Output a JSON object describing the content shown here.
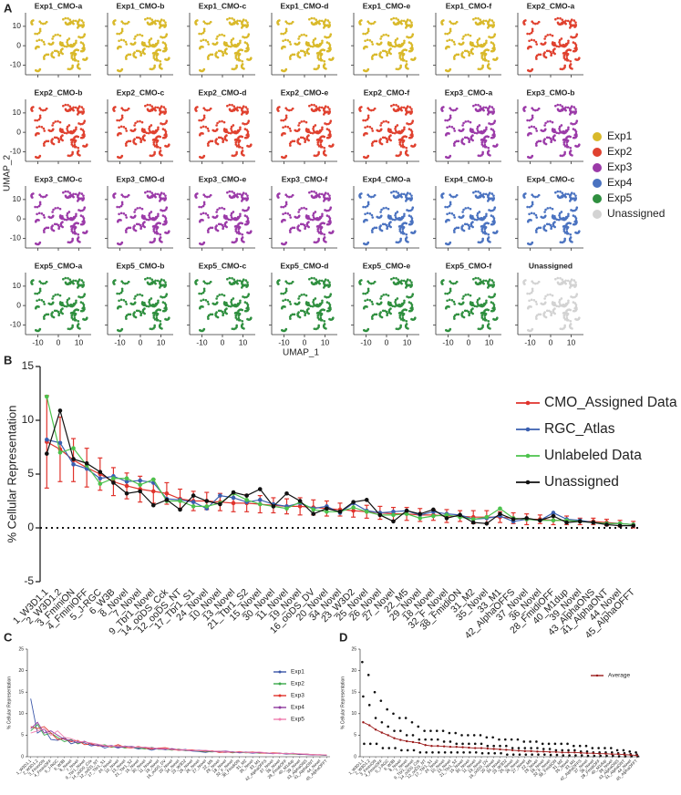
{
  "panel_labels": [
    "A",
    "B",
    "C",
    "D"
  ],
  "chart_data": [
    {
      "type": "umap_facets",
      "x_label": "UMAP_1",
      "y_label": "UMAP_2",
      "xlim": [
        -16,
        16
      ],
      "ylim": [
        -15,
        17
      ],
      "xticks": [
        -10,
        0,
        10
      ],
      "yticks": [
        -10,
        0,
        10
      ],
      "groups": [
        {
          "name": "Exp1",
          "color": "#d9b92a"
        },
        {
          "name": "Exp2",
          "color": "#e0412f"
        },
        {
          "name": "Exp3",
          "color": "#9b3aa8"
        },
        {
          "name": "Exp4",
          "color": "#4a72c0"
        },
        {
          "name": "Exp5",
          "color": "#2f8f3f"
        },
        {
          "name": "Unassigned",
          "color": "#d3d3d3"
        }
      ],
      "facets": [
        {
          "title": "Exp1_CMO-a",
          "group": "Exp1"
        },
        {
          "title": "Exp1_CMO-b",
          "group": "Exp1"
        },
        {
          "title": "Exp1_CMO-c",
          "group": "Exp1"
        },
        {
          "title": "Exp1_CMO-d",
          "group": "Exp1"
        },
        {
          "title": "Exp1_CMO-e",
          "group": "Exp1"
        },
        {
          "title": "Exp1_CMO-f",
          "group": "Exp1"
        },
        {
          "title": "Exp2_CMO-a",
          "group": "Exp2"
        },
        {
          "title": "Exp2_CMO-b",
          "group": "Exp2"
        },
        {
          "title": "Exp2_CMO-c",
          "group": "Exp2"
        },
        {
          "title": "Exp2_CMO-d",
          "group": "Exp2"
        },
        {
          "title": "Exp2_CMO-e",
          "group": "Exp2"
        },
        {
          "title": "Exp2_CMO-f",
          "group": "Exp2"
        },
        {
          "title": "Exp3_CMO-a",
          "group": "Exp3"
        },
        {
          "title": "Exp3_CMO-b",
          "group": "Exp3"
        },
        {
          "title": "Exp3_CMO-c",
          "group": "Exp3"
        },
        {
          "title": "Exp3_CMO-d",
          "group": "Exp3"
        },
        {
          "title": "Exp3_CMO-e",
          "group": "Exp3"
        },
        {
          "title": "Exp3_CMO-f",
          "group": "Exp3"
        },
        {
          "title": "Exp4_CMO-a",
          "group": "Exp4"
        },
        {
          "title": "Exp4_CMO-b",
          "group": "Exp4"
        },
        {
          "title": "Exp4_CMO-c",
          "group": "Exp4"
        },
        {
          "title": "Exp5_CMO-a",
          "group": "Exp5"
        },
        {
          "title": "Exp5_CMO-b",
          "group": "Exp5"
        },
        {
          "title": "Exp5_CMO-c",
          "group": "Exp5"
        },
        {
          "title": "Exp5_CMO-d",
          "group": "Exp5"
        },
        {
          "title": "Exp5_CMO-e",
          "group": "Exp5"
        },
        {
          "title": "Exp5_CMO-f",
          "group": "Exp5"
        },
        {
          "title": "Unassigned",
          "group": "Unassigned"
        }
      ]
    },
    {
      "type": "line",
      "y_label": "% Cellular Representation",
      "ylim": [
        -5,
        15
      ],
      "yticks": [
        -5,
        0,
        5,
        10,
        15
      ],
      "reference_line": 0,
      "categories": [
        "1_W3D1.1",
        "2_W3D1.2",
        "3_FminiON",
        "4_FminiOFF",
        "5_J-RGC",
        "6_W3B",
        "8_Novel",
        "7_Novel",
        "9_Tbr1_Novel",
        "14_ooDS_Cck",
        "12_ooDS_NT",
        "17_Tbr1_S1",
        "24_Novel",
        "10_Novel",
        "13_Novel",
        "21_Tbr1_S2",
        "15_Novel",
        "30_Novel",
        "11_Novel",
        "19_Novel",
        "16_ooDS_DV",
        "20_Novel",
        "34_Novel",
        "23_W3D2",
        "25_Novel",
        "26_Novel",
        "27_Novel",
        "22_M5",
        "29_Novel",
        "18_Novel",
        "32_F_Novel",
        "38_FmidiON",
        "31_M2",
        "35_Novel",
        "33_M1",
        "42_AlphaOFFS",
        "37_Novel",
        "36_Novel",
        "28_FmidiOFF",
        "40_M1dup",
        "39_Novel",
        "43_AlphaONS",
        "41_AlphaONT",
        "44_Novel",
        "45_AlphaOFFT"
      ],
      "series": [
        {
          "name": "CMO_Assigned Data",
          "color": "#e0332c",
          "values": [
            8.0,
            7.3,
            6.3,
            5.6,
            5.0,
            4.3,
            3.9,
            3.6,
            3.4,
            3.2,
            2.7,
            2.5,
            2.5,
            2.4,
            2.3,
            2.3,
            2.2,
            2.1,
            2.0,
            2.0,
            1.9,
            1.8,
            1.7,
            1.6,
            1.5,
            1.4,
            1.3,
            1.3,
            1.2,
            1.2,
            1.1,
            1.1,
            1.0,
            1.0,
            1.0,
            0.9,
            0.8,
            0.8,
            0.7,
            0.7,
            0.6,
            0.6,
            0.5,
            0.4,
            0.3
          ],
          "errors": [
            4.3,
            3.0,
            2.0,
            1.8,
            1.5,
            1.3,
            1.2,
            1.2,
            1.1,
            1.0,
            0.9,
            0.9,
            0.8,
            0.8,
            0.8,
            0.8,
            0.8,
            0.7,
            0.7,
            0.8,
            0.7,
            0.7,
            0.6,
            0.6,
            0.6,
            0.6,
            0.6,
            0.6,
            0.6,
            0.5,
            0.6,
            0.5,
            0.6,
            0.6,
            0.5,
            0.5,
            0.5,
            0.4,
            0.4,
            0.4,
            0.3,
            0.3,
            0.3,
            0.3,
            0.3
          ]
        },
        {
          "name": "RGC_Atlas",
          "color": "#3a5fb0",
          "values": [
            8.2,
            7.9,
            5.9,
            5.5,
            4.6,
            4.8,
            4.3,
            4.4,
            4.2,
            2.7,
            2.6,
            2.4,
            1.8,
            3.0,
            2.8,
            2.4,
            2.6,
            2.2,
            2.0,
            2.3,
            1.8,
            2.0,
            1.4,
            2.3,
            1.6,
            1.4,
            1.5,
            1.6,
            1.2,
            1.5,
            1.3,
            1.2,
            0.8,
            0.9,
            1.1,
            0.6,
            0.8,
            0.7,
            1.4,
            0.8,
            0.7,
            0.5,
            0.4,
            0.4,
            0.3
          ]
        },
        {
          "name": "Unlabeled Data",
          "color": "#4cc24c",
          "values": [
            12.2,
            7.0,
            7.4,
            5.8,
            4.1,
            4.6,
            4.6,
            4.0,
            4.5,
            2.5,
            2.5,
            2.0,
            2.0,
            2.3,
            3.2,
            2.6,
            2.2,
            2.0,
            1.8,
            2.4,
            1.7,
            1.5,
            1.5,
            1.9,
            1.5,
            1.2,
            1.2,
            1.3,
            0.9,
            1.1,
            1.2,
            1.0,
            0.8,
            1.0,
            1.8,
            0.9,
            0.8,
            0.7,
            0.7,
            0.7,
            0.6,
            0.5,
            0.4,
            0.4,
            0.3
          ]
        },
        {
          "name": "Unassigned",
          "color": "#111111",
          "values": [
            6.9,
            10.9,
            6.4,
            6.0,
            5.2,
            4.2,
            3.2,
            3.4,
            2.1,
            2.6,
            1.7,
            3.0,
            2.5,
            2.2,
            3.3,
            3.0,
            3.6,
            2.0,
            3.2,
            2.5,
            1.3,
            1.8,
            1.5,
            2.4,
            2.6,
            1.2,
            0.6,
            1.6,
            1.3,
            1.7,
            0.9,
            1.2,
            0.5,
            0.4,
            1.3,
            0.8,
            0.9,
            0.7,
            1.1,
            0.5,
            0.6,
            0.5,
            0.3,
            0.2,
            0.2
          ]
        }
      ]
    },
    {
      "type": "line",
      "y_label": "% Cellular Representation",
      "ylim": [
        0,
        25
      ],
      "yticks": [
        0,
        5,
        10,
        15,
        20,
        25
      ],
      "categories": [
        "1_W3D1.1",
        "2_W3D1.2",
        "3_FminiON",
        "4_FminiOFF",
        "5_J-RGC",
        "6_W3B",
        "8_Novel",
        "7_Novel",
        "9_Tbr1_Novel",
        "14_ooDS_Cck",
        "12_ooDS_NT",
        "17_Tbr1_S1",
        "24_Novel",
        "10_Novel",
        "13_Novel",
        "21_Tbr1_S2",
        "15_Novel",
        "30_Novel",
        "11_Novel",
        "19_Novel",
        "16_ooDS_DV",
        "20_Novel",
        "34_Novel",
        "23_W3D2",
        "25_Novel",
        "26_Novel",
        "27_Novel",
        "22_M5",
        "29_Novel",
        "18_Novel",
        "32_F_Novel",
        "38_FmidiON",
        "31_M2",
        "35_Novel",
        "33_M1",
        "42_AlphaOFFS",
        "37_Novel",
        "36_Novel",
        "28_FmidiOFF",
        "40_M1dup",
        "39_Novel",
        "43_AlphaONS",
        "41_AlphaONT",
        "44_Novel",
        "45_AlphaOFFT"
      ],
      "series": [
        {
          "name": "Exp1",
          "color": "#3a56a8",
          "values": [
            13.5,
            5.5,
            6.5,
            4.0,
            3.8,
            4.5,
            3.0,
            3.5,
            3.2,
            2.5,
            2.8,
            2.0,
            2.5,
            2.0,
            2.5,
            2.2,
            1.8,
            2.0,
            1.5,
            2.0,
            1.6,
            1.8,
            1.5,
            1.7,
            1.3,
            1.2,
            1.0,
            1.3,
            1.1,
            1.0,
            1.2,
            0.9,
            1.0,
            0.8,
            1.0,
            0.8,
            0.7,
            0.8,
            0.6,
            0.7,
            0.5,
            0.6,
            0.5,
            0.4,
            0.3
          ]
        },
        {
          "name": "Exp2",
          "color": "#3aa84a",
          "values": [
            6.0,
            7.5,
            5.0,
            5.5,
            4.5,
            3.5,
            4.0,
            3.0,
            3.5,
            3.0,
            2.5,
            2.8,
            2.2,
            2.5,
            2.0,
            2.3,
            2.0,
            1.8,
            2.2,
            1.7,
            1.8,
            1.5,
            1.8,
            1.4,
            1.5,
            1.3,
            1.2,
            1.1,
            1.3,
            1.2,
            0.9,
            1.1,
            0.9,
            1.0,
            0.8,
            0.9,
            0.8,
            0.7,
            0.8,
            0.6,
            0.6,
            0.5,
            0.5,
            0.4,
            0.3
          ]
        },
        {
          "name": "Exp3",
          "color": "#e0332c",
          "values": [
            7.0,
            6.5,
            7.0,
            5.5,
            4.0,
            4.2,
            3.5,
            3.8,
            2.8,
            3.0,
            2.5,
            2.5,
            2.3,
            2.8,
            2.2,
            2.0,
            2.4,
            2.0,
            1.8,
            2.0,
            2.1,
            1.7,
            1.5,
            1.6,
            1.6,
            1.4,
            1.3,
            1.4,
            1.0,
            1.1,
            1.0,
            1.2,
            1.0,
            1.1,
            0.9,
            0.8,
            0.9,
            0.8,
            0.7,
            0.7,
            0.6,
            0.6,
            0.5,
            0.4,
            0.4
          ]
        },
        {
          "name": "Exp4",
          "color": "#8e3a9e",
          "values": [
            6.5,
            8.0,
            5.5,
            6.0,
            5.0,
            4.0,
            3.8,
            3.2,
            3.6,
            2.8,
            2.6,
            2.4,
            2.6,
            2.2,
            2.3,
            2.4,
            2.1,
            2.2,
            2.0,
            1.8,
            1.7,
            1.9,
            1.6,
            1.5,
            1.4,
            1.5,
            1.4,
            1.2,
            1.2,
            1.3,
            1.1,
            1.0,
            1.1,
            0.9,
            1.0,
            0.9,
            0.7,
            0.8,
            0.7,
            0.8,
            0.6,
            0.5,
            0.4,
            0.5,
            0.3
          ]
        },
        {
          "name": "Exp5",
          "color": "#f07fb0",
          "values": [
            5.5,
            6.0,
            6.5,
            5.0,
            6.0,
            4.5,
            4.2,
            3.6,
            3.4,
            3.2,
            2.9,
            2.6,
            2.4,
            2.5,
            2.4,
            2.1,
            2.3,
            2.1,
            2.1,
            1.9,
            1.9,
            1.6,
            1.7,
            1.6,
            1.5,
            1.4,
            1.5,
            1.3,
            1.3,
            1.1,
            1.1,
            1.1,
            1.0,
            1.0,
            1.1,
            0.9,
            0.8,
            0.7,
            0.8,
            0.7,
            0.7,
            0.6,
            0.5,
            0.5,
            0.4
          ]
        }
      ]
    },
    {
      "type": "line_points",
      "y_label": "% Cellular Representation",
      "ylim": [
        0,
        25
      ],
      "yticks": [
        0,
        5,
        10,
        15,
        20,
        25
      ],
      "categories": [
        "1_W3D1.1",
        "2_W3D1.2",
        "3_FminiON",
        "4_FminiOFF",
        "5_J-RGC",
        "6_W3B",
        "8_Novel",
        "7_Novel",
        "9_Tbr1_Novel",
        "14_ooDS_Cck",
        "12_ooDS_NT",
        "17_Tbr1_S1",
        "24_Novel",
        "10_Novel",
        "13_Novel",
        "21_Tbr1_S2",
        "15_Novel",
        "30_Novel",
        "11_Novel",
        "19_Novel",
        "16_ooDS_DV",
        "20_Novel",
        "34_Novel",
        "23_W3D2",
        "25_Novel",
        "26_Novel",
        "27_Novel",
        "22_M5",
        "29_Novel",
        "18_Novel",
        "32_F_Novel",
        "38_FmidiON",
        "31_M2",
        "35_Novel",
        "33_M1",
        "42_AlphaOFFS",
        "37_Novel",
        "36_Novel",
        "28_FmidiOFF",
        "40_M1dup",
        "39_Novel",
        "43_AlphaONS",
        "41_AlphaONT",
        "44_Novel",
        "45_AlphaOFFT"
      ],
      "points": [
        [
          22,
          14,
          3
        ],
        [
          19,
          12,
          3
        ],
        [
          15,
          9,
          3
        ],
        [
          13,
          8,
          2
        ],
        [
          11,
          7,
          2
        ],
        [
          10,
          6,
          2
        ],
        [
          9,
          6,
          1.5
        ],
        [
          9,
          5,
          1.5
        ],
        [
          8,
          5,
          1.5
        ],
        [
          7,
          4,
          1
        ],
        [
          6,
          4,
          1
        ],
        [
          6,
          4,
          1
        ],
        [
          6,
          4,
          1
        ],
        [
          6,
          3.5,
          1
        ],
        [
          5.5,
          3.5,
          1
        ],
        [
          5.5,
          3,
          1
        ],
        [
          5,
          3,
          1
        ],
        [
          5,
          3,
          1
        ],
        [
          5,
          3,
          1
        ],
        [
          5,
          3,
          0.8
        ],
        [
          4.5,
          2.5,
          0.8
        ],
        [
          4.5,
          2.5,
          0.8
        ],
        [
          4,
          2.5,
          0.8
        ],
        [
          4,
          2.5,
          0.5
        ],
        [
          4,
          2,
          0.5
        ],
        [
          4,
          2,
          0.5
        ],
        [
          3.5,
          2,
          0.5
        ],
        [
          3.5,
          2,
          0.5
        ],
        [
          3.5,
          2,
          0.5
        ],
        [
          3,
          1.8,
          0.5
        ],
        [
          3,
          1.8,
          0.4
        ],
        [
          3,
          1.5,
          0.4
        ],
        [
          3,
          1.5,
          0.3
        ],
        [
          3,
          1.5,
          0.3
        ],
        [
          2.5,
          1.5,
          0.3
        ],
        [
          2.5,
          1.2,
          0.3
        ],
        [
          2.5,
          1.2,
          0.2
        ],
        [
          2,
          1,
          0.2
        ],
        [
          2,
          1,
          0.2
        ],
        [
          2,
          1,
          0.2
        ],
        [
          2,
          1,
          0.2
        ],
        [
          1.5,
          0.8,
          0.1
        ],
        [
          1.5,
          0.8,
          0.1
        ],
        [
          1.2,
          0.6,
          0.1
        ],
        [
          1,
          0.5,
          0.1
        ]
      ],
      "series": [
        {
          "name": "Average",
          "color": "#9b1b1b",
          "values": [
            8.0,
            7.3,
            6.3,
            5.6,
            5.0,
            4.3,
            3.9,
            3.6,
            3.4,
            3.2,
            2.7,
            2.5,
            2.5,
            2.4,
            2.3,
            2.3,
            2.2,
            2.1,
            2.0,
            2.0,
            1.9,
            1.8,
            1.7,
            1.6,
            1.5,
            1.4,
            1.3,
            1.3,
            1.2,
            1.2,
            1.1,
            1.1,
            1.0,
            1.0,
            1.0,
            0.9,
            0.8,
            0.8,
            0.7,
            0.7,
            0.6,
            0.6,
            0.5,
            0.4,
            0.3
          ]
        }
      ]
    }
  ]
}
